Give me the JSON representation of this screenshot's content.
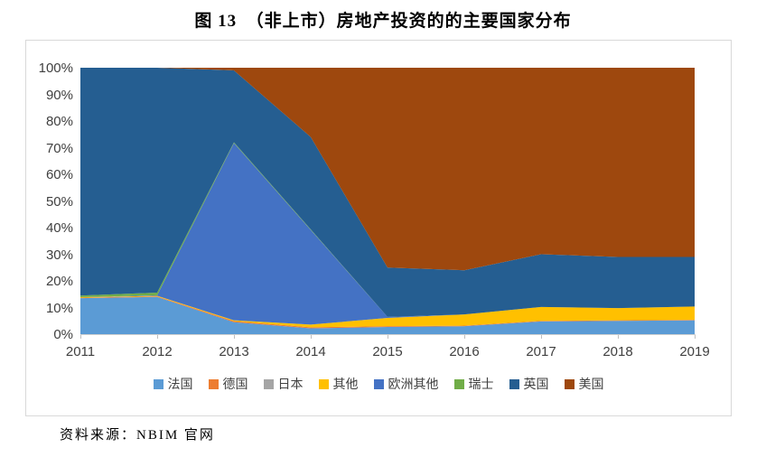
{
  "title": "图 13　（非上市）房地产投资的的主要国家分布",
  "source": "资料来源：NBIM 官网",
  "chart_data": {
    "type": "area",
    "stacked": true,
    "percent_stacked": true,
    "title": "（非上市）房地产投资的的主要国家分布",
    "xlabel": "",
    "ylabel": "",
    "ylim": [
      0,
      100
    ],
    "ytick_labels": [
      "0%",
      "10%",
      "20%",
      "30%",
      "40%",
      "50%",
      "60%",
      "70%",
      "80%",
      "90%",
      "100%"
    ],
    "grid": false,
    "legend_position": "bottom",
    "categories": [
      "2011",
      "2012",
      "2013",
      "2014",
      "2015",
      "2016",
      "2017",
      "2018",
      "2019"
    ],
    "series": [
      {
        "name": "法国",
        "color": "#5B9BD5",
        "values": [
          13.5,
          14.0,
          4.5,
          2.2,
          2.7,
          3.0,
          4.8,
          5.0,
          5.2
        ]
      },
      {
        "name": "德国",
        "color": "#ED7D31",
        "values": [
          0.2,
          0.2,
          0.4,
          0.4,
          0.3,
          0.2,
          0.2,
          0.2,
          0.2
        ]
      },
      {
        "name": "日本",
        "color": "#A5A5A5",
        "values": [
          0,
          0,
          0,
          0,
          0,
          0,
          0,
          0,
          0
        ]
      },
      {
        "name": "其他",
        "color": "#FFC000",
        "values": [
          0.2,
          0.2,
          0.3,
          1.0,
          3.1,
          4.2,
          5.2,
          4.6,
          5.0
        ]
      },
      {
        "name": "欧洲其他",
        "color": "#4472C4",
        "values": [
          0,
          0.2,
          66.5,
          35.5,
          0.4,
          0,
          0,
          0,
          0
        ]
      },
      {
        "name": "瑞士",
        "color": "#70AD47",
        "values": [
          0.6,
          1.0,
          0.3,
          0.2,
          0,
          0,
          0,
          0,
          0
        ]
      },
      {
        "name": "英国",
        "color": "#255E91",
        "values": [
          85.5,
          84.4,
          27.0,
          34.7,
          18.5,
          16.6,
          19.8,
          19.2,
          18.6
        ]
      },
      {
        "name": "美国",
        "color": "#9E480E",
        "values": [
          0,
          0,
          1.0,
          26.0,
          75.0,
          76.0,
          70.0,
          71.0,
          71.0
        ]
      }
    ]
  }
}
